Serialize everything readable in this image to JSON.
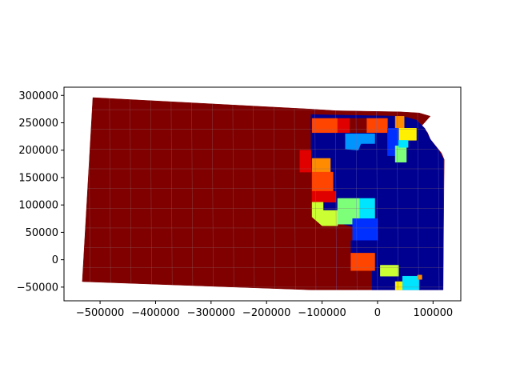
{
  "chart_data": {
    "type": "choropleth-map",
    "title": "",
    "xlabel": "",
    "ylabel": "",
    "xlim": [
      -565000,
      150000
    ],
    "ylim": [
      -75000,
      315000
    ],
    "x_ticks": [
      -500000,
      -400000,
      -300000,
      -200000,
      -100000,
      0,
      100000
    ],
    "x_tick_labels": [
      "−500000",
      "−400000",
      "−300000",
      "−200000",
      "−100000",
      "0",
      "100000"
    ],
    "y_ticks": [
      -50000,
      0,
      50000,
      100000,
      150000,
      200000,
      250000,
      300000
    ],
    "y_tick_labels": [
      "−50000",
      "0",
      "50000",
      "100000",
      "150000",
      "200000",
      "250000",
      "300000"
    ],
    "colormap": "jet",
    "colors": {
      "dark-red": "#800000",
      "red": "#e00000",
      "orange-red": "#ff4500",
      "orange": "#ff8c00",
      "yellow": "#ffef00",
      "yellow-green": "#ccff33",
      "light-green": "#7dff7a",
      "cyan": "#00e5ff",
      "sky-blue": "#0094ff",
      "blue": "#0030ff",
      "dark-blue": "#000090"
    },
    "regions": [
      {
        "color": "dark-red",
        "polygon": [
          [
            -513000,
            296000
          ],
          [
            -120000,
            275000
          ],
          [
            -75000,
            272000
          ],
          [
            -20000,
            271000
          ],
          [
            40000,
            270000
          ],
          [
            75000,
            268000
          ],
          [
            95000,
            262000
          ],
          [
            80000,
            245000
          ],
          [
            90000,
            232000
          ],
          [
            95000,
            220000
          ],
          [
            115000,
            195000
          ],
          [
            120000,
            183000
          ],
          [
            118000,
            -55000
          ],
          [
            -120000,
            -55000
          ],
          [
            -532000,
            -40000
          ]
        ]
      },
      {
        "color": "dark-blue",
        "polygon": [
          [
            -120000,
            180000
          ],
          [
            -120000,
            265000
          ],
          [
            45000,
            262000
          ],
          [
            70000,
            255000
          ],
          [
            85000,
            240000
          ],
          [
            95000,
            220000
          ],
          [
            110000,
            200000
          ],
          [
            118000,
            185000
          ],
          [
            118000,
            -55000
          ],
          [
            -10000,
            -55000
          ],
          [
            -10000,
            50000
          ],
          [
            -80000,
            70000
          ],
          [
            -110000,
            100000
          ]
        ]
      },
      {
        "color": "orange-red",
        "polygon": [
          [
            -118000,
            258000
          ],
          [
            -72000,
            258000
          ],
          [
            -72000,
            232000
          ],
          [
            -118000,
            232000
          ]
        ]
      },
      {
        "color": "red",
        "polygon": [
          [
            -72000,
            258000
          ],
          [
            -50000,
            258000
          ],
          [
            -50000,
            232000
          ],
          [
            -72000,
            232000
          ]
        ]
      },
      {
        "color": "orange-red",
        "polygon": [
          [
            -20000,
            258000
          ],
          [
            18000,
            258000
          ],
          [
            18000,
            232000
          ],
          [
            -20000,
            232000
          ]
        ]
      },
      {
        "color": "dark-red",
        "polygon": [
          [
            -50000,
            258000
          ],
          [
            -20000,
            258000
          ],
          [
            -20000,
            232000
          ],
          [
            -50000,
            232000
          ]
        ]
      },
      {
        "color": "orange",
        "polygon": [
          [
            32000,
            262000
          ],
          [
            48000,
            262000
          ],
          [
            48000,
            240000
          ],
          [
            32000,
            240000
          ]
        ]
      },
      {
        "color": "yellow",
        "polygon": [
          [
            38000,
            240000
          ],
          [
            70000,
            240000
          ],
          [
            70000,
            218000
          ],
          [
            38000,
            218000
          ]
        ]
      },
      {
        "color": "blue",
        "polygon": [
          [
            18000,
            240000
          ],
          [
            38000,
            240000
          ],
          [
            38000,
            190000
          ],
          [
            18000,
            190000
          ]
        ]
      },
      {
        "color": "light-green",
        "polygon": [
          [
            32000,
            208000
          ],
          [
            52000,
            208000
          ],
          [
            52000,
            178000
          ],
          [
            32000,
            178000
          ]
        ]
      },
      {
        "color": "cyan",
        "polygon": [
          [
            38000,
            218000
          ],
          [
            55000,
            218000
          ],
          [
            55000,
            205000
          ],
          [
            38000,
            205000
          ]
        ]
      },
      {
        "color": "sky-blue",
        "polygon": [
          [
            -58000,
            230000
          ],
          [
            -5000,
            230000
          ],
          [
            -5000,
            212000
          ],
          [
            -30000,
            212000
          ],
          [
            -35000,
            200000
          ],
          [
            -58000,
            202000
          ]
        ]
      },
      {
        "color": "red",
        "polygon": [
          [
            -140000,
            200000
          ],
          [
            -120000,
            200000
          ],
          [
            -120000,
            160000
          ],
          [
            -140000,
            160000
          ]
        ]
      },
      {
        "color": "orange",
        "polygon": [
          [
            -118000,
            185000
          ],
          [
            -85000,
            185000
          ],
          [
            -85000,
            160000
          ],
          [
            -118000,
            160000
          ]
        ]
      },
      {
        "color": "orange-red",
        "polygon": [
          [
            -118000,
            160000
          ],
          [
            -80000,
            160000
          ],
          [
            -80000,
            125000
          ],
          [
            -118000,
            125000
          ]
        ]
      },
      {
        "color": "red",
        "polygon": [
          [
            -118000,
            125000
          ],
          [
            -75000,
            125000
          ],
          [
            -75000,
            105000
          ],
          [
            -118000,
            105000
          ]
        ]
      },
      {
        "color": "yellow-green",
        "polygon": [
          [
            -118000,
            105000
          ],
          [
            -98000,
            105000
          ],
          [
            -98000,
            90000
          ],
          [
            -72000,
            90000
          ],
          [
            -72000,
            62000
          ],
          [
            -100000,
            62000
          ],
          [
            -118000,
            78000
          ]
        ]
      },
      {
        "color": "light-green",
        "polygon": [
          [
            -72000,
            112000
          ],
          [
            -32000,
            112000
          ],
          [
            -32000,
            65000
          ],
          [
            -72000,
            65000
          ]
        ]
      },
      {
        "color": "cyan",
        "polygon": [
          [
            -32000,
            112000
          ],
          [
            -5000,
            112000
          ],
          [
            -5000,
            75000
          ],
          [
            -32000,
            75000
          ]
        ]
      },
      {
        "color": "blue",
        "polygon": [
          [
            -45000,
            75000
          ],
          [
            0,
            75000
          ],
          [
            0,
            35000
          ],
          [
            -45000,
            35000
          ]
        ]
      },
      {
        "color": "dark-blue",
        "polygon": [
          [
            -48000,
            35000
          ],
          [
            0,
            35000
          ],
          [
            0,
            12000
          ],
          [
            -48000,
            12000
          ]
        ]
      },
      {
        "color": "orange-red",
        "polygon": [
          [
            -48000,
            12000
          ],
          [
            -5000,
            12000
          ],
          [
            -5000,
            -20000
          ],
          [
            -48000,
            -20000
          ]
        ]
      },
      {
        "color": "yellow-green",
        "polygon": [
          [
            5000,
            -10000
          ],
          [
            38000,
            -10000
          ],
          [
            38000,
            -30000
          ],
          [
            5000,
            -30000
          ]
        ]
      },
      {
        "color": "yellow",
        "polygon": [
          [
            32000,
            -40000
          ],
          [
            45000,
            -40000
          ],
          [
            45000,
            -55000
          ],
          [
            32000,
            -55000
          ]
        ]
      },
      {
        "color": "cyan",
        "polygon": [
          [
            45000,
            -30000
          ],
          [
            75000,
            -30000
          ],
          [
            75000,
            -55000
          ],
          [
            45000,
            -55000
          ]
        ]
      },
      {
        "color": "orange",
        "polygon": [
          [
            72000,
            -28000
          ],
          [
            80000,
            -28000
          ],
          [
            80000,
            -36000
          ],
          [
            72000,
            -36000
          ]
        ]
      }
    ]
  }
}
